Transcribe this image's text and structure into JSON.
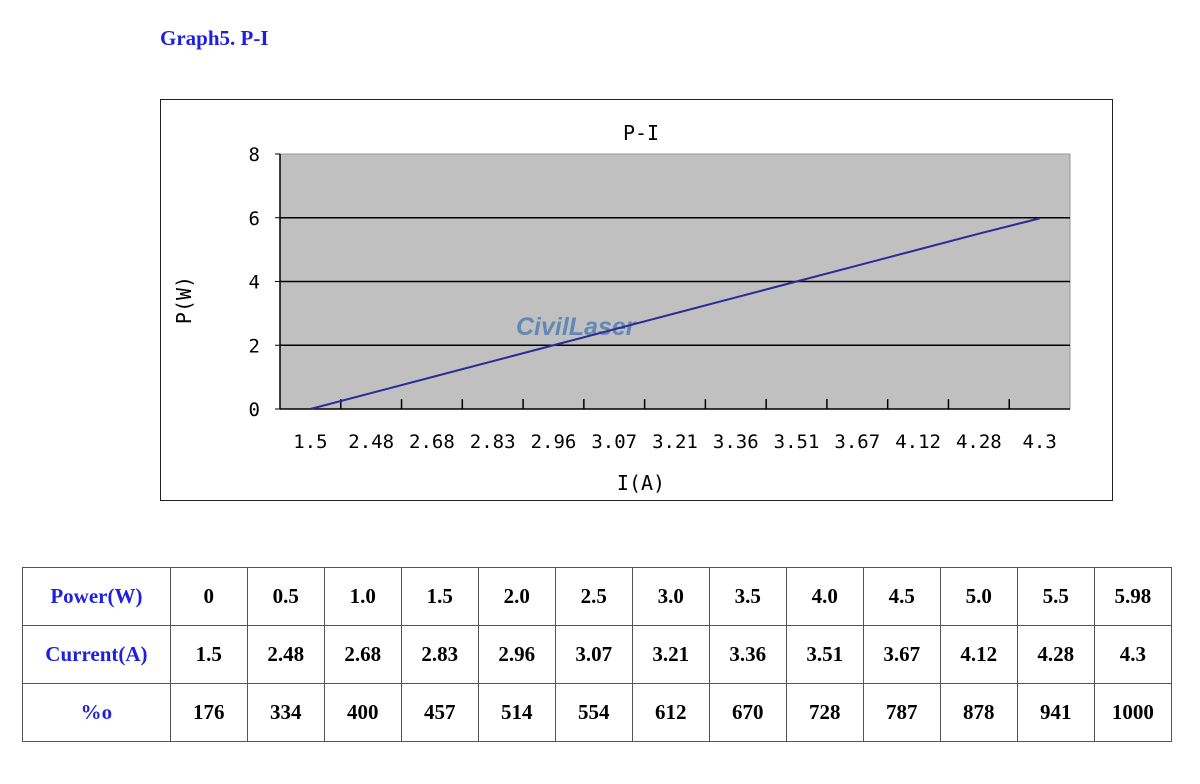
{
  "heading": "Graph5. P-I",
  "watermark": "CivilLaser",
  "chart_data": {
    "type": "line",
    "title": "P-I",
    "xlabel": "I(A)",
    "ylabel": "P(W)",
    "categories": [
      "1.5",
      "2.48",
      "2.68",
      "2.83",
      "2.96",
      "3.07",
      "3.21",
      "3.36",
      "3.51",
      "3.67",
      "4.12",
      "4.28",
      "4.3"
    ],
    "values": [
      0,
      0.5,
      1.0,
      1.5,
      2.0,
      2.5,
      3.0,
      3.5,
      4.0,
      4.5,
      5.0,
      5.5,
      5.98
    ],
    "ylim": [
      0,
      8
    ],
    "yticks": [
      0,
      2,
      4,
      6,
      8
    ],
    "grid": true,
    "colors": {
      "line": "#2a2a9a",
      "plot_bg": "#c0c0c0"
    }
  },
  "table": {
    "rows": [
      {
        "label": "Power(W)",
        "cells": [
          "0",
          "0.5",
          "1.0",
          "1.5",
          "2.0",
          "2.5",
          "3.0",
          "3.5",
          "4.0",
          "4.5",
          "5.0",
          "5.5",
          "5.98"
        ]
      },
      {
        "label": "Current(A)",
        "cells": [
          "1.5",
          "2.48",
          "2.68",
          "2.83",
          "2.96",
          "3.07",
          "3.21",
          "3.36",
          "3.51",
          "3.67",
          "4.12",
          "4.28",
          "4.3"
        ]
      },
      {
        "label": "%o",
        "cells": [
          "176",
          "334",
          "400",
          "457",
          "514",
          "554",
          "612",
          "670",
          "728",
          "787",
          "878",
          "941",
          "1000"
        ]
      }
    ]
  }
}
